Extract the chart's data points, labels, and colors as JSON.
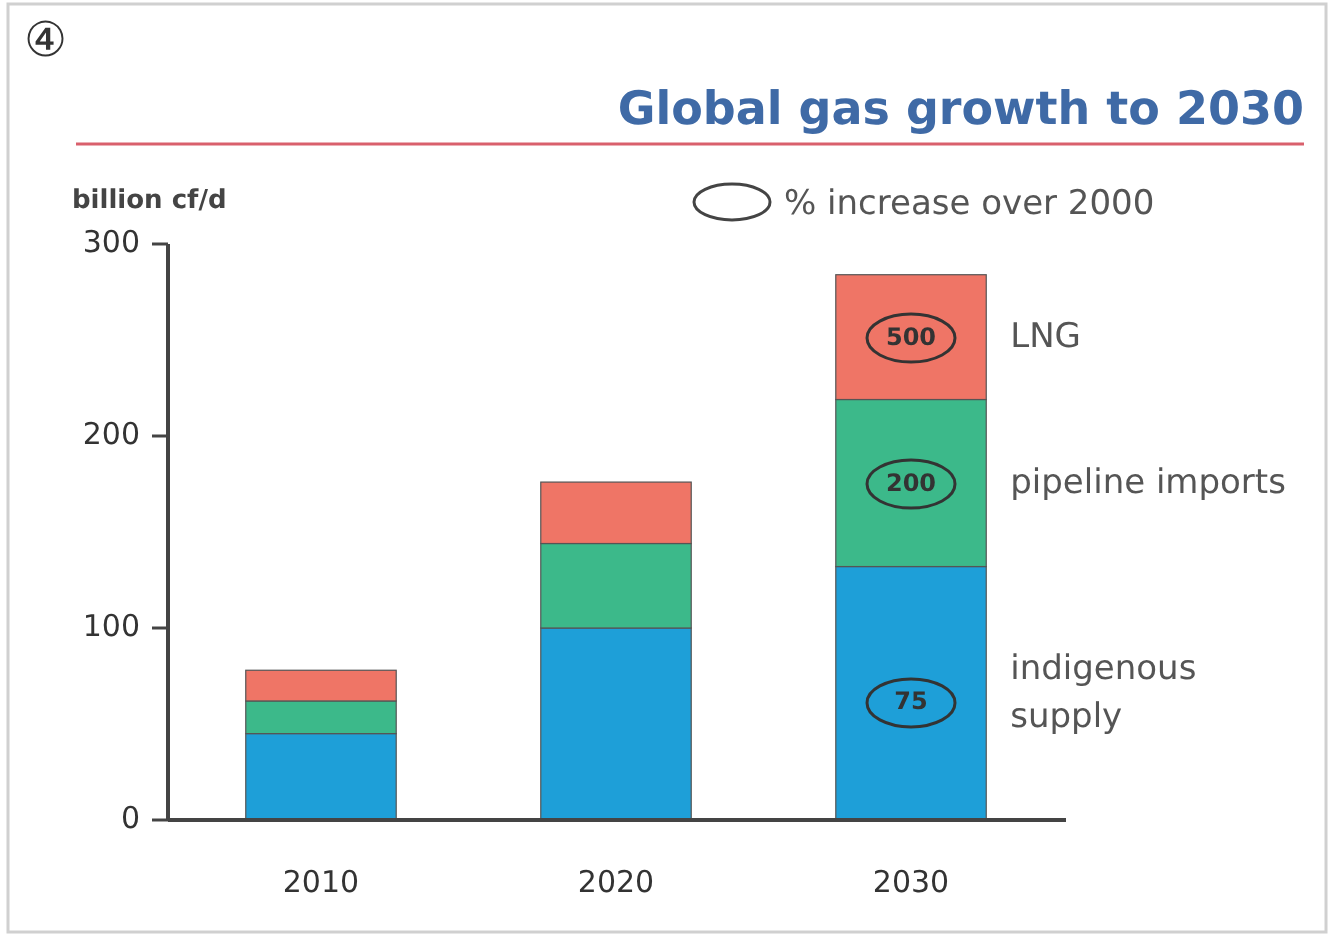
{
  "chart_data": {
    "type": "bar",
    "title": "Global gas growth to 2030",
    "ylabel": "billion cf/d",
    "stacked": true,
    "legend": "right",
    "categories": [
      "2010",
      "2020",
      "2030"
    ],
    "series": [
      {
        "name": "indigenous supply",
        "color": "#1e9fd8",
        "values": [
          45,
          100,
          132
        ]
      },
      {
        "name": "pipeline imports",
        "color": "#3cb98a",
        "values": [
          17,
          44,
          87
        ]
      },
      {
        "name": "LNG",
        "color": "#ef7566",
        "values": [
          16,
          32,
          65
        ]
      }
    ],
    "ylim": [
      0,
      300
    ],
    "yticks": [
      0,
      100,
      200,
      300
    ],
    "annotations": [
      "④",
      "% increase over 2000",
      {
        "text": "75",
        "x": "2030",
        "y": 61
      },
      {
        "text": "200",
        "x": "2030",
        "y": 175
      },
      {
        "text": "500",
        "x": "2030",
        "y": 251
      }
    ]
  }
}
